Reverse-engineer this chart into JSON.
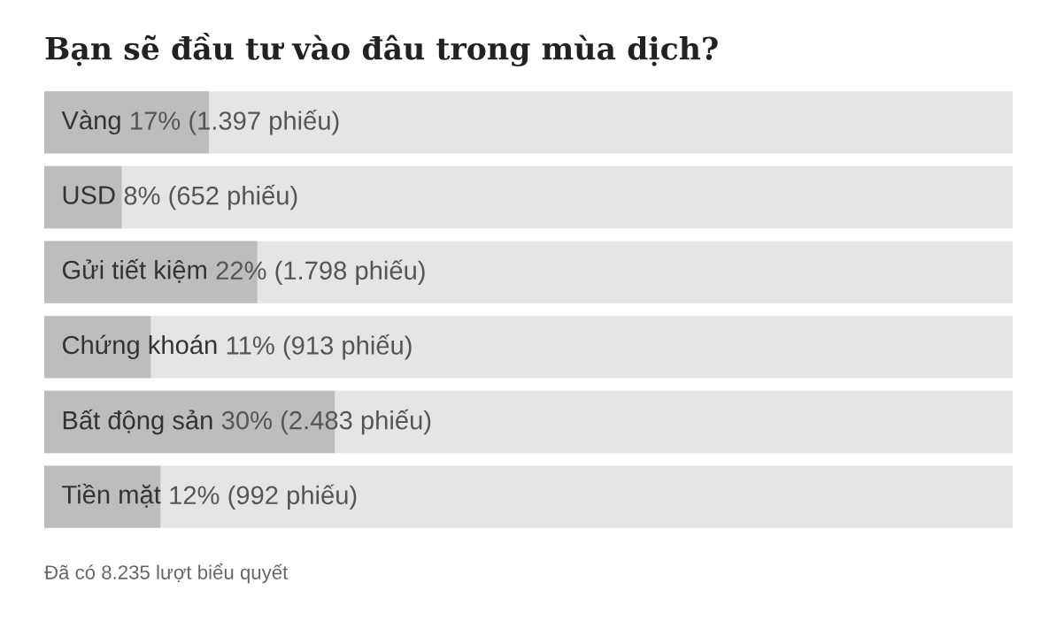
{
  "chart_data": {
    "type": "bar",
    "orientation": "horizontal",
    "title": "Bạn sẽ đầu tư vào đâu trong mùa dịch?",
    "categories": [
      "Vàng",
      "USD",
      "Gửi tiết kiệm",
      "Chứng khoán",
      "Bất động sản",
      "Tiền mặt"
    ],
    "values": [
      17,
      8,
      22,
      11,
      30,
      12
    ],
    "value_labels": [
      "17% (1.397 phiếu)",
      "8% (652 phiếu)",
      "22% (1.798 phiếu)",
      "11% (913 phiếu)",
      "30% (2.483 phiếu)",
      "12% (992 phiếu)"
    ],
    "color": "#bdbdbd",
    "xlim": [
      0,
      100
    ],
    "annotations": [
      "Đã có 8.235 lượt biểu quyết"
    ]
  }
}
